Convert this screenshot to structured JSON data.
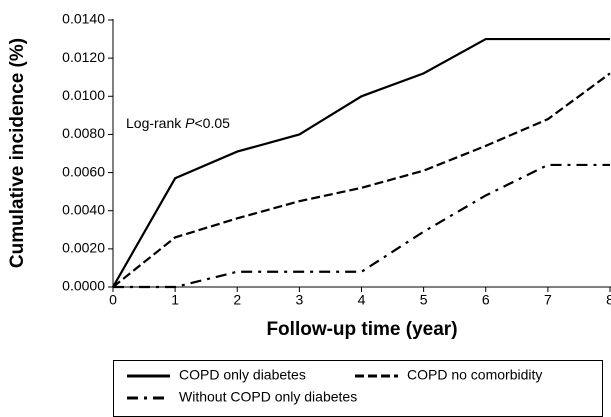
{
  "chart_data": {
    "type": "line",
    "xlabel": "Follow-up time (year)",
    "ylabel": "Cumulative incidence (%)",
    "annotation": {
      "prefix": "Log-rank ",
      "italic": "P",
      "suffix": "<0.05"
    },
    "x": [
      0,
      1,
      2,
      3,
      4,
      5,
      6,
      7,
      8
    ],
    "xlim": [
      0,
      8
    ],
    "xticks": [
      0,
      1,
      2,
      3,
      4,
      5,
      6,
      7,
      8
    ],
    "ylim": [
      0,
      0.014
    ],
    "yticks": [
      {
        "value": 0,
        "label": "0.0000"
      },
      {
        "value": 0.002,
        "label": "0.0020"
      },
      {
        "value": 0.004,
        "label": "0.0040"
      },
      {
        "value": 0.006,
        "label": "0.0060"
      },
      {
        "value": 0.008,
        "label": "0.0080"
      },
      {
        "value": 0.01,
        "label": "0.0100"
      },
      {
        "value": 0.012,
        "label": "0.0120"
      },
      {
        "value": 0.014,
        "label": "0.0140"
      }
    ],
    "grid": false,
    "series": [
      {
        "name": "COPD only diabetes",
        "color": "#000000",
        "dash": "solid",
        "values": [
          0,
          0.0057,
          0.0071,
          0.008,
          0.01,
          0.0112,
          0.013,
          0.013,
          0.013
        ]
      },
      {
        "name": "COPD no comorbidity",
        "color": "#000000",
        "dash": "dashed",
        "values": [
          0,
          0.0026,
          0.0036,
          0.0045,
          0.0052,
          0.0061,
          0.0074,
          0.0088,
          0.0112
        ]
      },
      {
        "name": "Without COPD only diabetes",
        "color": "#000000",
        "dash": "dashdot",
        "values": [
          0,
          0,
          0.0008,
          0.0008,
          0.0008,
          0.0029,
          0.0048,
          0.0064,
          0.0064
        ]
      }
    ]
  }
}
